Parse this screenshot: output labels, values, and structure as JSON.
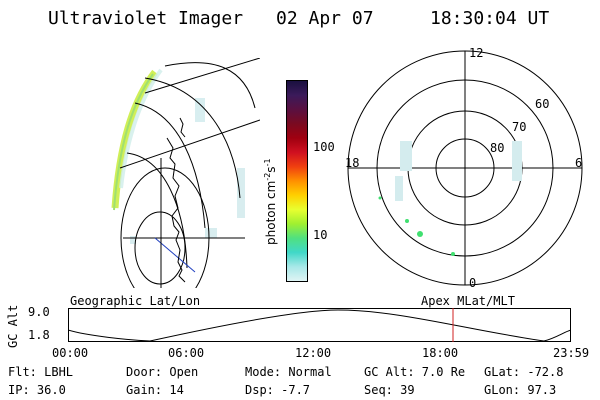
{
  "header": {
    "instrument": "Ultraviolet Imager",
    "date": "02 Apr 07",
    "time": "18:30:04 UT"
  },
  "colorbar": {
    "unit_base": "photon cm",
    "unit_exp1": "-2",
    "unit_mid": "s",
    "unit_exp2": "-1",
    "ticks": [
      "100",
      "10"
    ],
    "colors": [
      "#1a1040",
      "#3b1a5a",
      "#5a1040",
      "#7a0a20",
      "#a00010",
      "#d01020",
      "#f04010",
      "#ff9000",
      "#ffd000",
      "#e8ff30",
      "#a0f030",
      "#50e080",
      "#40d8c8",
      "#a8e8e8",
      "#dff4f4"
    ]
  },
  "polar_plot": {
    "mlt_labels": [
      "12",
      "18",
      "6",
      "0"
    ],
    "lat_labels": [
      "60",
      "70",
      "80"
    ]
  },
  "panel_labels": {
    "left": "Geographic Lat/Lon",
    "right": "Apex MLat/MLT"
  },
  "altitude_plot": {
    "ylabel": "GC Alt",
    "yticks": [
      "9.0",
      "1.8"
    ],
    "xticks": [
      "00:00",
      "06:00",
      "12:00",
      "18:00",
      "23:59"
    ],
    "marker_color": "#d02020"
  },
  "info": {
    "filter": "Flt: LBHL",
    "ip": "IP: 36.0",
    "door": "Door: Open",
    "gain": "Gain: 14",
    "mode": "Mode: Normal",
    "dsp": "Dsp:   -7.7",
    "gc_alt": "GC Alt: 7.0 Re",
    "seq": "Seq: 39",
    "glat": "GLat: -72.8",
    "glon": "GLon:  97.3"
  }
}
